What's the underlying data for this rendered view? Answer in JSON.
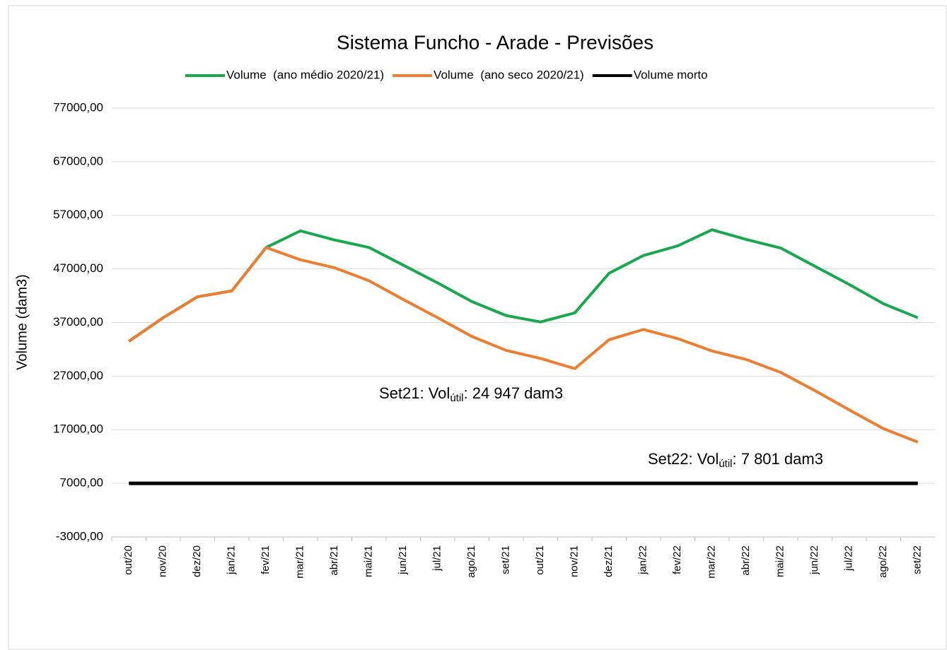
{
  "chart_data": {
    "type": "line",
    "title": "Sistema Funcho - Arade - Previsões",
    "y_label": "Volume (dam3)",
    "categories": [
      "out/20",
      "nov/20",
      "dez/20",
      "jan/21",
      "fev/21",
      "mar/21",
      "abr/21",
      "mai/21",
      "jun/21",
      "jul/21",
      "ago/21",
      "set/21",
      "out/21",
      "nov/21",
      "dez/21",
      "jan/22",
      "fev/22",
      "mar/22",
      "abr/22",
      "mai/22",
      "jun/22",
      "jul/22",
      "ago/22",
      "set/22"
    ],
    "series": [
      {
        "name": "Volume  (ano médio 2020/21)",
        "color": "#1aa84f",
        "values": [
          33500,
          37900,
          41800,
          42900,
          51000,
          54100,
          52400,
          51000,
          47700,
          44400,
          40900,
          38300,
          37100,
          38800,
          46200,
          49500,
          51300,
          54300,
          52500,
          50900,
          47500,
          44100,
          40500,
          37900
        ]
      },
      {
        "name": "Volume  (ano seco 2020/21)",
        "color": "#ed7d31",
        "values": [
          33500,
          37900,
          41800,
          42900,
          51000,
          48700,
          47200,
          44800,
          41300,
          37900,
          34400,
          31800,
          30300,
          28400,
          33800,
          35700,
          34000,
          31700,
          30100,
          27700,
          24300,
          20700,
          17200,
          14700
        ]
      },
      {
        "name": "Volume morto",
        "color": "#000000",
        "values": [
          7000,
          7000,
          7000,
          7000,
          7000,
          7000,
          7000,
          7000,
          7000,
          7000,
          7000,
          7000,
          7000,
          7000,
          7000,
          7000,
          7000,
          7000,
          7000,
          7000,
          7000,
          7000,
          7000,
          7000
        ]
      }
    ],
    "ylim": [
      -3000,
      77000
    ],
    "yticks": [
      {
        "value": -3000,
        "label": "-3000,00"
      },
      {
        "value": 7000,
        "label": "7000,00"
      },
      {
        "value": 17000,
        "label": "17000,00"
      },
      {
        "value": 27000,
        "label": "27000,00"
      },
      {
        "value": 37000,
        "label": "37000,00"
      },
      {
        "value": 47000,
        "label": "47000,00"
      },
      {
        "value": 57000,
        "label": "57000,00"
      },
      {
        "value": 67000,
        "label": "67000,00"
      },
      {
        "value": 77000,
        "label": "77000,00"
      }
    ],
    "grid": true,
    "legend": "top",
    "annotations": [
      {
        "prefix": "Set21: Vol",
        "subscript": "útil",
        "suffix": ": 24 947 dam3"
      },
      {
        "prefix": "Set22: Vol",
        "subscript": "útil",
        "suffix": ": 7 801 dam3"
      }
    ]
  }
}
